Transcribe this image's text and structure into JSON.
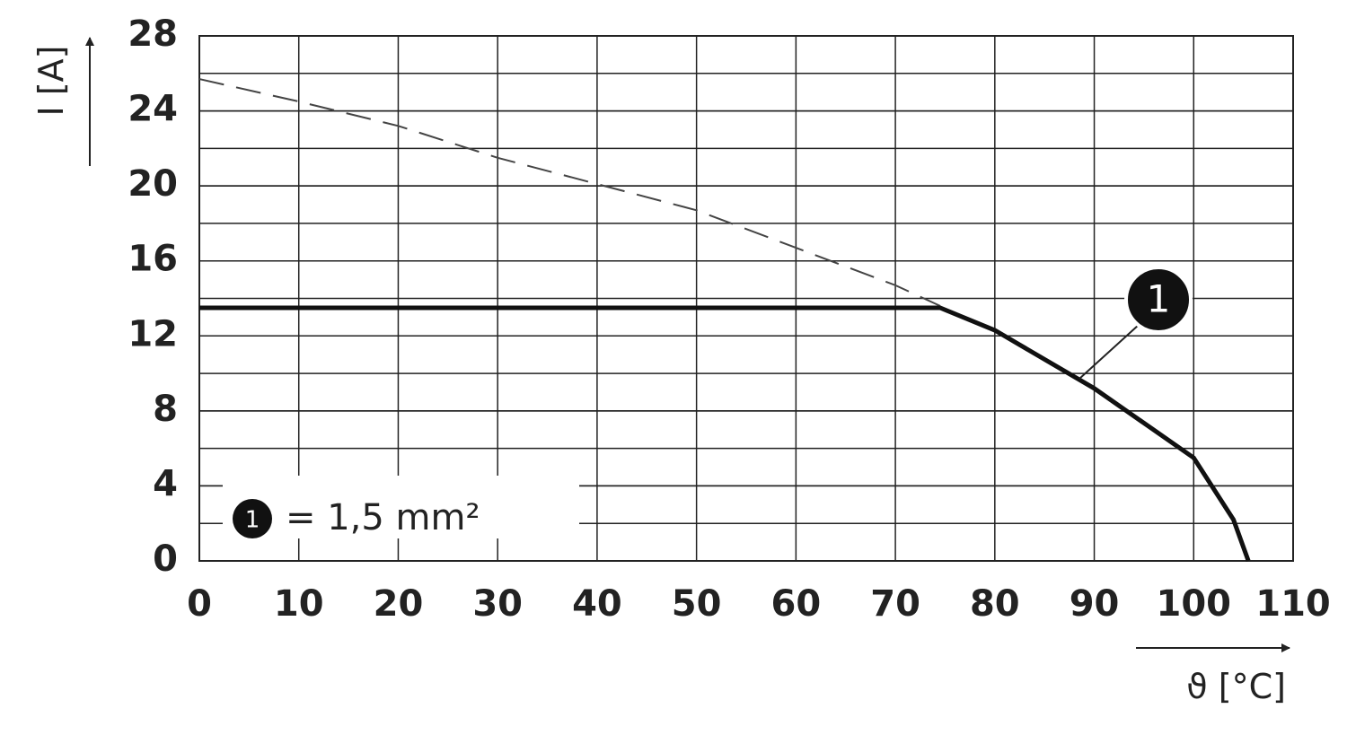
{
  "chart_data": {
    "type": "line",
    "x_label": "ϑ [°C]",
    "y_label": "I [A]",
    "xlim": [
      0,
      110
    ],
    "xticks": [
      0,
      10,
      20,
      30,
      40,
      50,
      60,
      70,
      80,
      90,
      100,
      110
    ],
    "ylim": [
      0,
      28
    ],
    "yticks": [
      0,
      4,
      8,
      12,
      16,
      20,
      24,
      28
    ],
    "grid": true,
    "minor_ygrid_step": 2,
    "legend_position": "lower left",
    "legend_label": "= 1,5 mm²",
    "series": [
      {
        "style": "dashed",
        "color": "#444444",
        "x": [
          0,
          10,
          20,
          30,
          40,
          50,
          60,
          70,
          74.5
        ],
        "values": [
          25.7,
          24.5,
          23.2,
          21.5,
          20.1,
          18.7,
          16.7,
          14.7,
          13.6
        ]
      },
      {
        "name": "1",
        "style": "solid",
        "color": "#111111",
        "x": [
          0,
          74.5,
          80,
          90,
          100,
          104,
          105.5
        ],
        "values": [
          13.5,
          13.5,
          12.3,
          9.2,
          5.5,
          2.2,
          0
        ]
      }
    ]
  }
}
